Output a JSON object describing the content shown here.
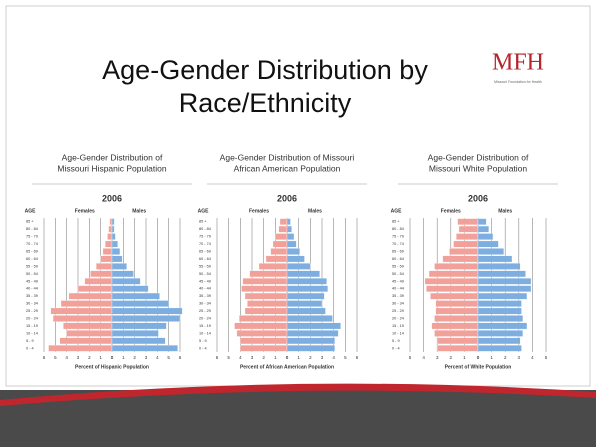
{
  "slide": {
    "title_lines": [
      "Age-Gender Distribution by",
      "Race/Ethnicity"
    ],
    "logo": "MFH",
    "logo_caption": "Missouri Foundation for Health"
  },
  "chart_data": [
    {
      "type": "pyramid",
      "title_lines": [
        "Age-Gender Distribution of",
        "Missouri Hispanic Population"
      ],
      "subtitle": "2006",
      "ylabel": "AGE",
      "xlabel": "Percent of Hispanic Population",
      "categories": [
        "0 - 4",
        "5 - 9",
        "10 - 14",
        "15 - 19",
        "20 - 24",
        "25 - 29",
        "30 - 34",
        "35 - 39",
        "40 - 44",
        "45 - 49",
        "50 - 54",
        "55 - 59",
        "60 - 64",
        "65 - 69",
        "70 - 74",
        "75 - 79",
        "80 - 84",
        "85 +"
      ],
      "series": [
        {
          "name": "Females",
          "color": "#f2a09a",
          "values": [
            5.6,
            4.6,
            4.0,
            4.3,
            5.2,
            5.4,
            4.5,
            3.8,
            3.0,
            2.4,
            1.9,
            1.4,
            1.0,
            0.8,
            0.6,
            0.4,
            0.3,
            0.2
          ]
        },
        {
          "name": "Males",
          "color": "#7eaee0",
          "values": [
            5.8,
            4.7,
            4.1,
            4.8,
            6.0,
            6.2,
            5.0,
            4.2,
            3.2,
            2.5,
            1.9,
            1.3,
            0.9,
            0.7,
            0.5,
            0.3,
            0.2,
            0.2
          ]
        }
      ],
      "xlim": [
        0,
        6
      ],
      "xticks": [
        0,
        1,
        2,
        3,
        4,
        5,
        6
      ],
      "grid": true
    },
    {
      "type": "pyramid",
      "title_lines": [
        "Age-Gender Distribution of Missouri",
        "African American Population"
      ],
      "subtitle": "2006",
      "ylabel": "AGE",
      "xlabel": "Percent of African American Population",
      "categories": [
        "0 - 4",
        "5 - 9",
        "10 - 14",
        "15 - 19",
        "20 - 24",
        "25 - 29",
        "30 - 34",
        "35 - 39",
        "40 - 44",
        "45 - 49",
        "50 - 54",
        "55 - 59",
        "60 - 64",
        "65 - 69",
        "70 - 74",
        "75 - 79",
        "80 - 84",
        "85 +"
      ],
      "series": [
        {
          "name": "Females",
          "color": "#f2a09a",
          "values": [
            4.0,
            4.0,
            4.3,
            4.5,
            4.1,
            3.6,
            3.4,
            3.6,
            3.9,
            3.8,
            3.2,
            2.4,
            1.8,
            1.4,
            1.2,
            1.0,
            0.7,
            0.6
          ]
        },
        {
          "name": "Males",
          "color": "#7eaee0",
          "values": [
            4.1,
            4.1,
            4.4,
            4.6,
            3.9,
            3.3,
            3.0,
            3.2,
            3.5,
            3.4,
            2.8,
            2.0,
            1.5,
            1.1,
            0.8,
            0.6,
            0.4,
            0.3
          ]
        }
      ],
      "xlim": [
        0,
        6
      ],
      "xticks": [
        0,
        1,
        2,
        3,
        4,
        5,
        6
      ],
      "grid": true
    },
    {
      "type": "pyramid",
      "title_lines": [
        "Age-Gender Distribution of",
        "Missouri White Population"
      ],
      "subtitle": "2006",
      "ylabel": "AGE",
      "xlabel": "Percent of White Population",
      "categories": [
        "0 - 4",
        "5 - 9",
        "10 - 14",
        "15 - 19",
        "20 - 24",
        "25 - 29",
        "30 - 34",
        "35 - 39",
        "40 - 44",
        "45 - 49",
        "50 - 54",
        "55 - 59",
        "60 - 64",
        "65 - 69",
        "70 - 74",
        "75 - 79",
        "80 - 84",
        "85 +"
      ],
      "series": [
        {
          "name": "Females",
          "color": "#f2a09a",
          "values": [
            3.0,
            3.0,
            3.2,
            3.4,
            3.2,
            3.1,
            3.1,
            3.5,
            3.8,
            3.9,
            3.6,
            3.2,
            2.6,
            2.1,
            1.8,
            1.6,
            1.4,
            1.5
          ]
        },
        {
          "name": "Males",
          "color": "#7eaee0",
          "values": [
            3.2,
            3.1,
            3.3,
            3.6,
            3.3,
            3.2,
            3.2,
            3.6,
            3.9,
            3.9,
            3.5,
            3.1,
            2.5,
            1.9,
            1.5,
            1.1,
            0.8,
            0.6
          ]
        }
      ],
      "xlim": [
        0,
        5
      ],
      "xticks": [
        0,
        1,
        2,
        3,
        4,
        5
      ],
      "grid": true
    }
  ]
}
